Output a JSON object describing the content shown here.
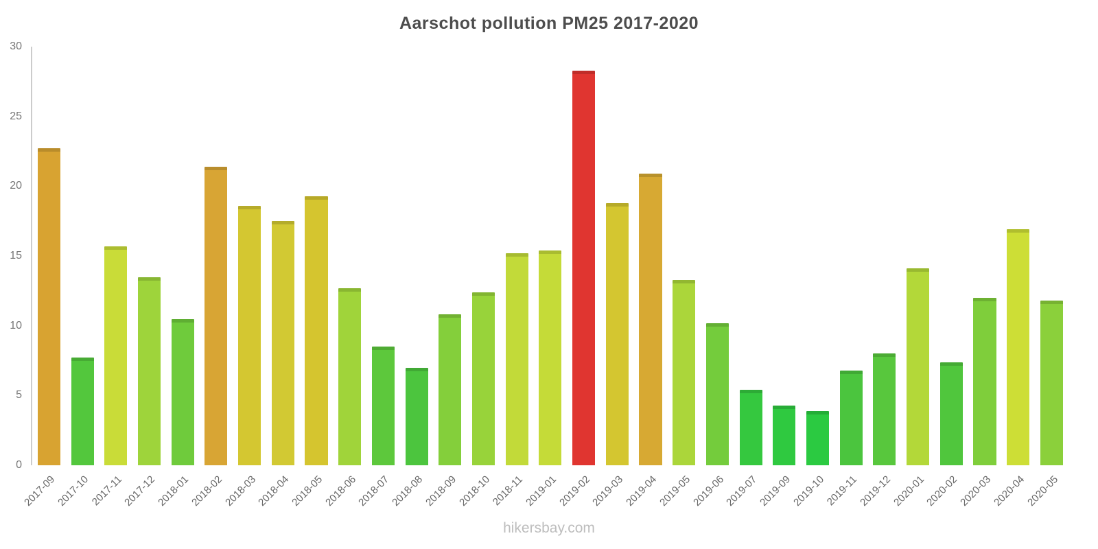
{
  "header": {
    "title": "Aarschot pollution PM25 2017-2020"
  },
  "footer": {
    "watermark": "hikersbay.com"
  },
  "chart_data": {
    "type": "bar",
    "title": "Aarschot pollution PM25 2017-2020",
    "xlabel": "",
    "ylabel": "",
    "ylim": [
      0,
      30
    ],
    "yticks": [
      0,
      5,
      10,
      15,
      20,
      25,
      30
    ],
    "grid": false,
    "legend_position": "none",
    "categories": [
      "2017-09",
      "2017-10",
      "2017-11",
      "2017-12",
      "2018-01",
      "2018-02",
      "2018-03",
      "2018-04",
      "2018-05",
      "2018-06",
      "2018-07",
      "2018-08",
      "2018-09",
      "2018-10",
      "2018-11",
      "2019-01",
      "2019-02",
      "2019-03",
      "2019-04",
      "2019-05",
      "2019-06",
      "2019-07",
      "2019-09",
      "2019-10",
      "2019-11",
      "2019-12",
      "2020-01",
      "2020-02",
      "2020-03",
      "2020-04",
      "2020-05"
    ],
    "values": [
      22.7,
      7.7,
      15.7,
      13.5,
      10.5,
      21.4,
      18.6,
      17.5,
      19.3,
      12.7,
      8.5,
      7.0,
      10.8,
      12.4,
      15.2,
      15.4,
      28.3,
      18.8,
      20.9,
      13.3,
      10.2,
      5.4,
      4.3,
      3.9,
      6.8,
      8.0,
      14.1,
      7.4,
      12.0,
      16.9,
      11.8
    ],
    "colors": [
      "#d8a331",
      "#53c73d",
      "#c9dc38",
      "#9ed43b",
      "#6fcb3c",
      "#d8a534",
      "#d4c731",
      "#d2c933",
      "#d5c52f",
      "#a0d43a",
      "#5dc83c",
      "#4cc53e",
      "#84cf3b",
      "#98d33a",
      "#c2da39",
      "#c5db38",
      "#e03530",
      "#d4c630",
      "#d7a933",
      "#abd63a",
      "#74cc3c",
      "#35c83f",
      "#2fc940",
      "#2bca41",
      "#4bc53e",
      "#58c73d",
      "#b3d839",
      "#50c63d",
      "#7fce3b",
      "#cdde36",
      "#8bd03b"
    ],
    "axis_color": "#cccccc",
    "tick_label_color": "#777777",
    "title_color": "#4d4d4d",
    "watermark_color": "#bdbdbd"
  }
}
